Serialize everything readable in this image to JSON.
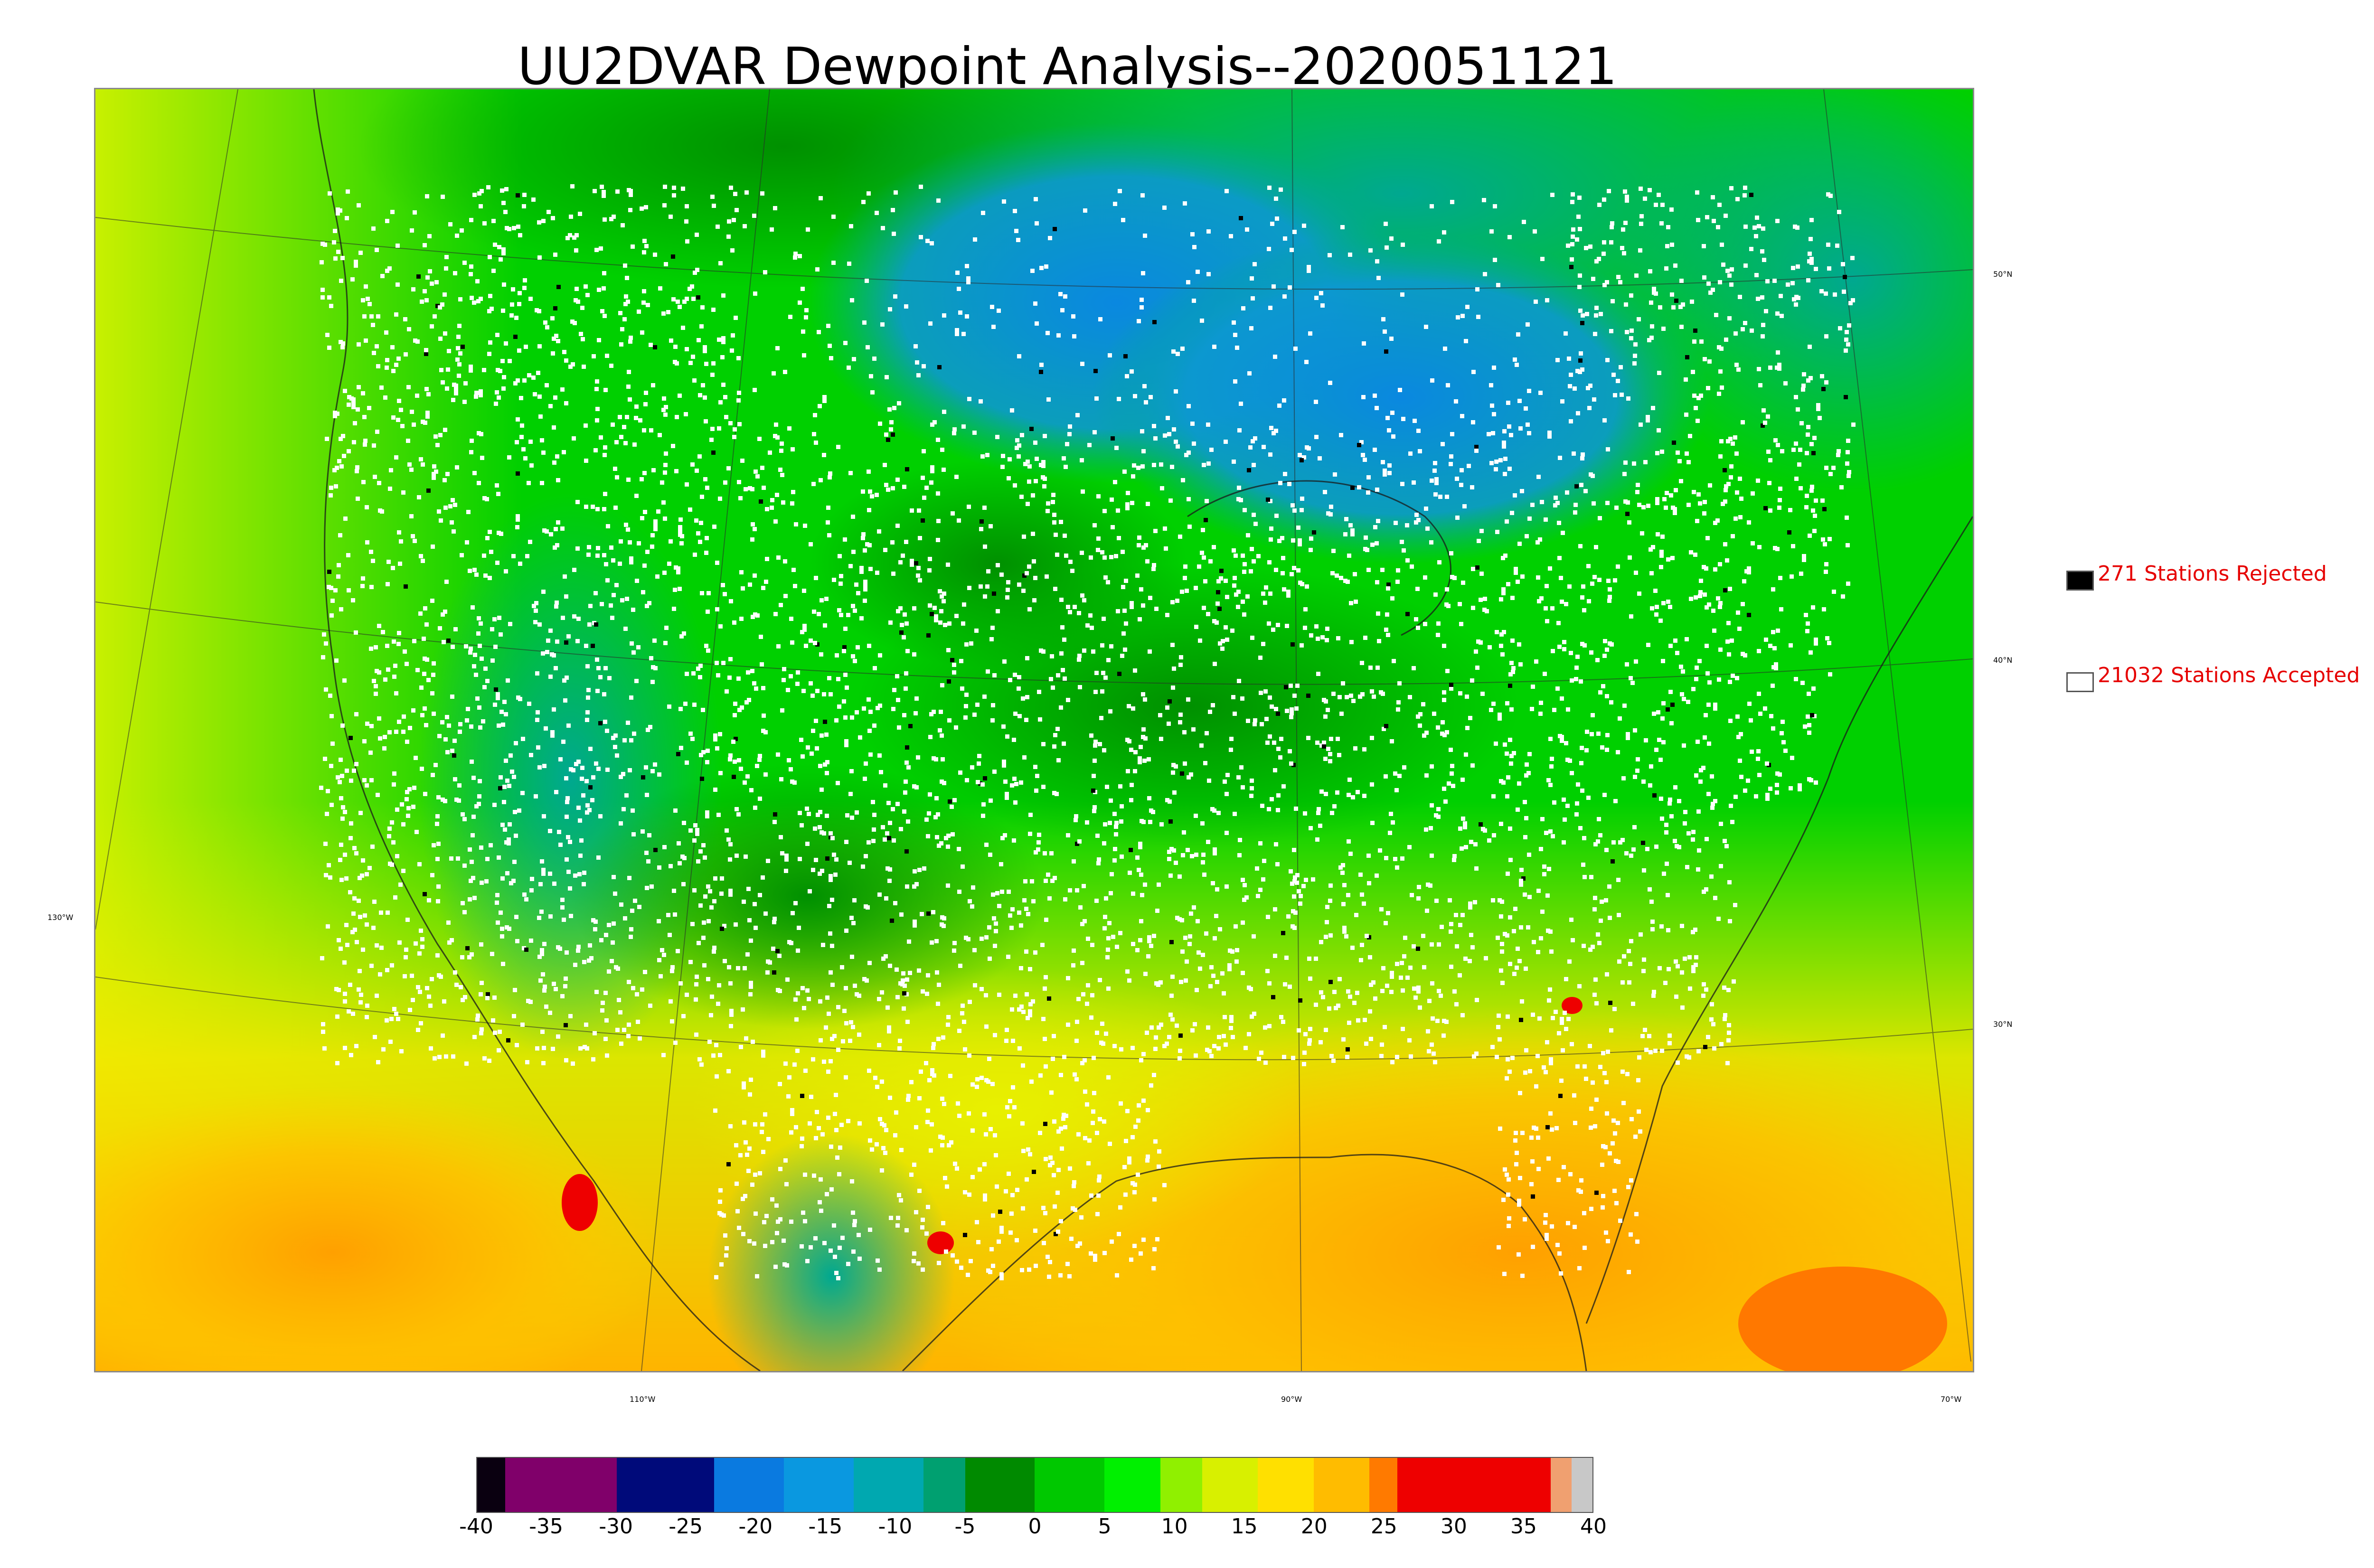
{
  "title": "UU2DVAR Dewpoint Analysis--2020051121",
  "map": {
    "lat_labels": [
      "50°N",
      "40°N",
      "30°N"
    ],
    "lon_labels": [
      "130°W",
      "110°W",
      "90°W",
      "70°W"
    ],
    "colors": {
      "background_green": "#00d000",
      "dark_green": "#009a00",
      "teal": "#00a890",
      "blue": "#0a88e0",
      "yellow": "#d4f000",
      "orange": "#ffaa00",
      "red": "#ee0000",
      "station_accepted": "#ffffff",
      "station_rejected": "#000000"
    }
  },
  "legend": {
    "rejected": {
      "count": "271",
      "label": "271 Stations Rejected",
      "color": "#000000"
    },
    "accepted": {
      "count": "21032",
      "label": "21032 Stations Accepted",
      "color": "#ffffff"
    }
  },
  "colorbar": {
    "ticks": [
      "-40",
      "-35",
      "-30",
      "-25",
      "-20",
      "-15",
      "-10",
      "-5",
      "0",
      "5",
      "10",
      "15",
      "20",
      "25",
      "30",
      "35",
      "40"
    ],
    "min": -40,
    "max": 40,
    "segments": [
      {
        "from": -40,
        "to": -38,
        "color": "#0a0010"
      },
      {
        "from": -38,
        "to": -30,
        "color": "#80006a"
      },
      {
        "from": -30,
        "to": -23,
        "color": "#000a7a"
      },
      {
        "from": -23,
        "to": -18,
        "color": "#0a7ae0"
      },
      {
        "from": -18,
        "to": -13,
        "color": "#0a98e0"
      },
      {
        "from": -13,
        "to": -8,
        "color": "#00a8b0"
      },
      {
        "from": -8,
        "to": -5,
        "color": "#00a070"
      },
      {
        "from": -5,
        "to": 0,
        "color": "#008a00"
      },
      {
        "from": 0,
        "to": 5,
        "color": "#00c800"
      },
      {
        "from": 5,
        "to": 9,
        "color": "#00f000"
      },
      {
        "from": 9,
        "to": 12,
        "color": "#90f000"
      },
      {
        "from": 12,
        "to": 16,
        "color": "#d8f000"
      },
      {
        "from": 16,
        "to": 20,
        "color": "#ffe000"
      },
      {
        "from": 20,
        "to": 24,
        "color": "#ffbc00"
      },
      {
        "from": 24,
        "to": 26,
        "color": "#ff7a00"
      },
      {
        "from": 26,
        "to": 37,
        "color": "#ee0000"
      },
      {
        "from": 37,
        "to": 38.5,
        "color": "#f0a070"
      },
      {
        "from": 38.5,
        "to": 40,
        "color": "#c8c8c8"
      }
    ]
  }
}
